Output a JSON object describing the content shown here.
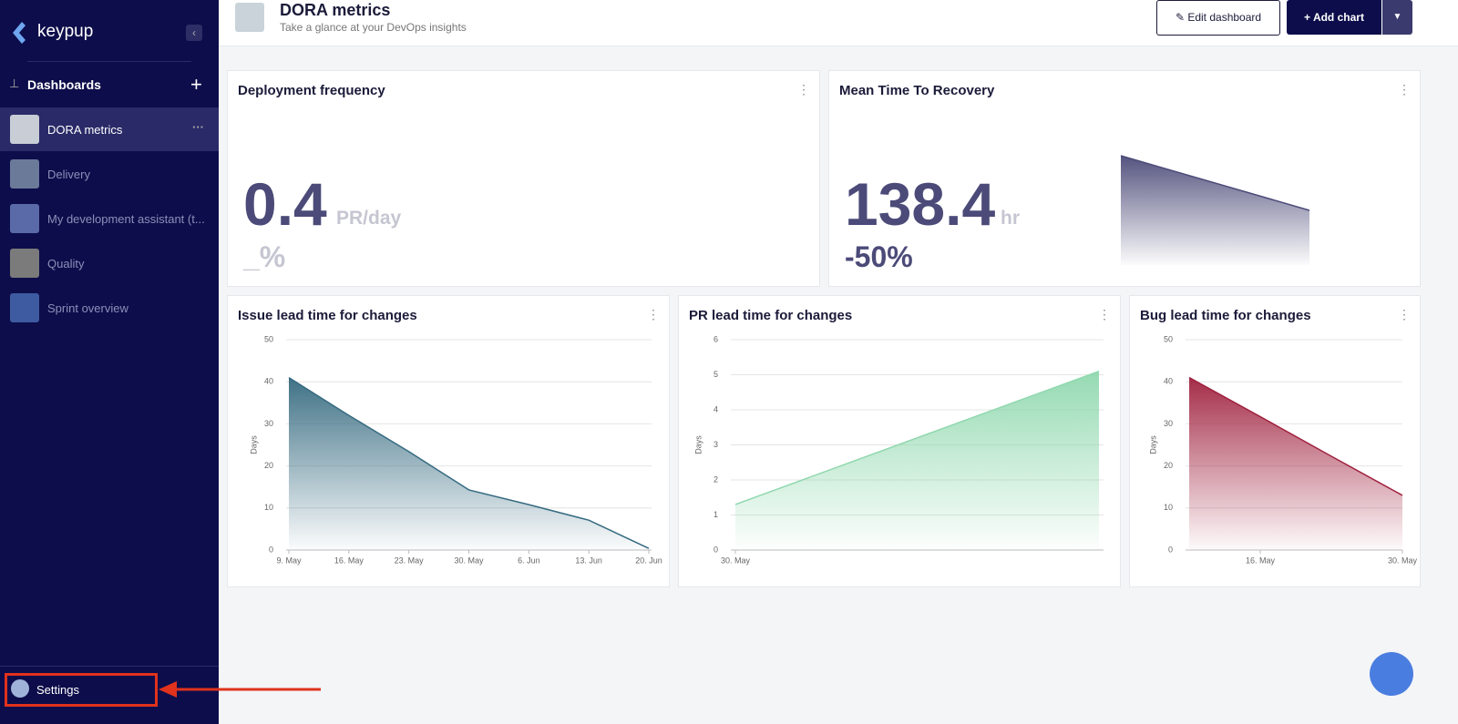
{
  "sidebar": {
    "brand": "keypup",
    "section": "Dashboards",
    "items": [
      "DORA metrics",
      "Delivery",
      "My development assistant (t...",
      "Quality",
      "Sprint overview"
    ],
    "settings": "Settings"
  },
  "header": {
    "title": "DORA metrics",
    "subtitle": "Take a glance at your DevOps insights",
    "buttons": [
      "Edit dashboard",
      "Add chart"
    ]
  },
  "widgets": [
    {
      "title": "Deployment frequency",
      "value": "0.4",
      "unit": "PR/day",
      "change": "_%"
    },
    {
      "title": "Mean Time To Recovery",
      "value": "138.4",
      "unit": "hr",
      "change": "-50%",
      "chart_data": {
        "type": "sparkline",
        "values": [
          276.8,
          138.4
        ],
        "color": "#4b4a78"
      }
    },
    {
      "title": "Issue lead time for changes",
      "chart_data": {
        "type": "area",
        "y_label": "Days",
        "categories": [
          "9. May",
          "16. May",
          "23. May",
          "30. May",
          "6. Jun",
          "13. Jun",
          "20. Jun"
        ],
        "values": [
          41,
          32,
          23.4,
          14.3,
          10.8,
          7.1,
          0.4
        ],
        "ylim": [
          0,
          50
        ],
        "yticks": [
          0,
          10,
          20,
          30,
          40,
          50
        ],
        "grid": true,
        "color": "#356a80"
      }
    },
    {
      "title": "PR lead time for changes",
      "chart_data": {
        "type": "area",
        "y_label": "Days",
        "categories": [
          "30. May",
          null
        ],
        "values": [
          1.3,
          5.1
        ],
        "ylim": [
          0,
          6
        ],
        "yticks": [
          0,
          1,
          2,
          3,
          4,
          5,
          6
        ],
        "grid": true,
        "color": "#8fd8ae"
      }
    },
    {
      "title": "Bug lead time for changes",
      "chart_data": {
        "type": "area",
        "y_label": "Days",
        "categories": [
          null,
          "16. May",
          null,
          "30. May"
        ],
        "values": [
          41,
          31.7,
          22.3,
          13
        ],
        "ylim": [
          0,
          50
        ],
        "yticks": [
          0,
          10,
          20,
          30,
          40,
          50
        ],
        "grid": true,
        "color": "#a0223f"
      }
    }
  ]
}
